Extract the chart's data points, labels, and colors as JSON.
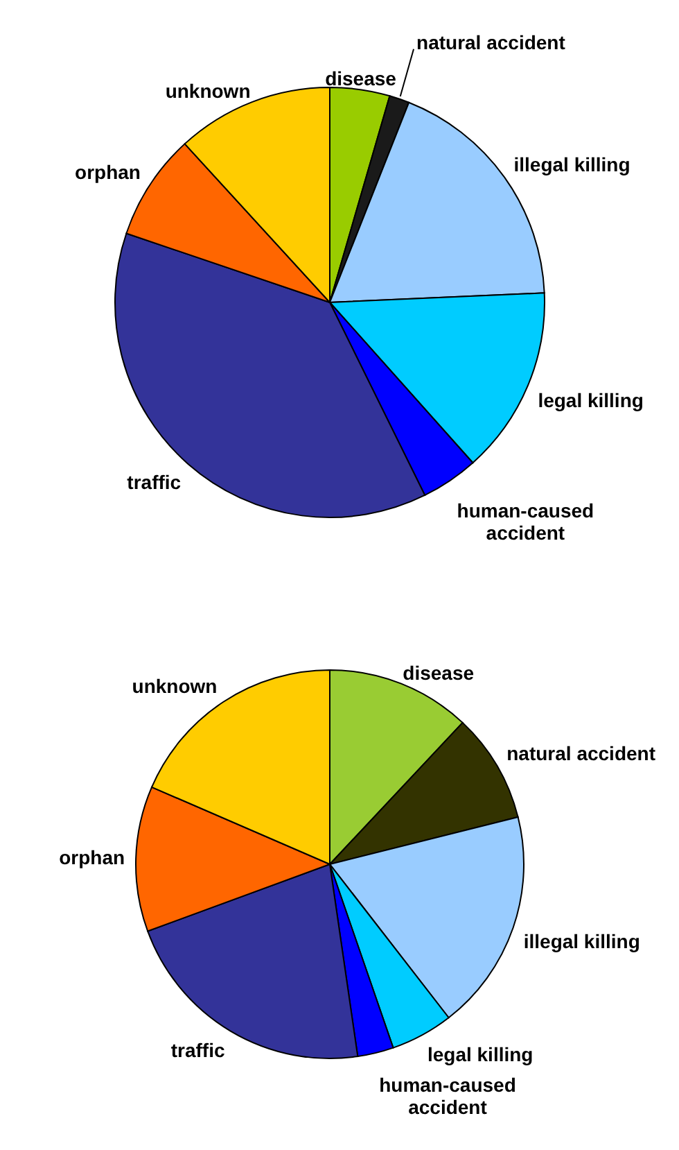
{
  "chart_data": [
    {
      "type": "pie",
      "categories": [
        "disease",
        "natural accident",
        "illegal killing",
        "legal killing",
        "human-caused accident",
        "traffic",
        "orphan",
        "unknown"
      ],
      "values": [
        4.5,
        1.5,
        18.3,
        14.1,
        4.3,
        37.5,
        8,
        11.8
      ],
      "colors": [
        "#99cc00",
        "#1a1a1a",
        "#99ccff",
        "#00ccff",
        "#0000ff",
        "#333399",
        "#ff6600",
        "#ffcc00"
      ]
    },
    {
      "type": "pie",
      "categories": [
        "disease",
        "natural accident",
        "illegal killing",
        "legal killing",
        "human-caused accident",
        "traffic",
        "orphan",
        "unknown"
      ],
      "values": [
        12,
        9.1,
        18.4,
        5.2,
        3,
        21.7,
        12.1,
        18.5
      ],
      "colors": [
        "#99cc33",
        "#333300",
        "#99ccff",
        "#00ccff",
        "#0000ff",
        "#333399",
        "#ff6600",
        "#ffcc00"
      ]
    }
  ]
}
